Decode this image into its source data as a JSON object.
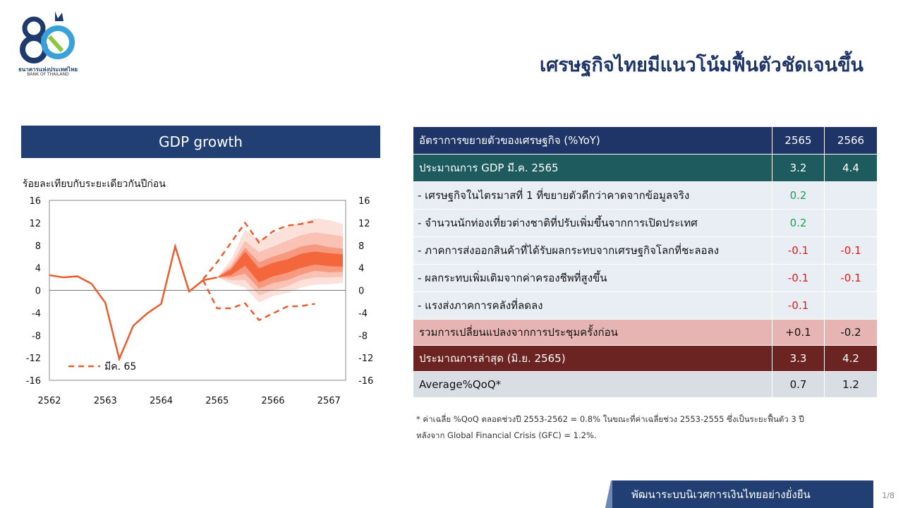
{
  "header": {
    "logo_text_th": "ธนาคารแห่งประเทศไทย",
    "logo_text_en": "BANK OF THAILAND",
    "title": "เศรษฐกิจไทยมีแนวโน้มฟื้นตัวชัดเจนขึ้น"
  },
  "chart_panel": {
    "title": "GDP growth",
    "unit_label": "ร้อยละเทียบกับระยะเดียวกันปีก่อน"
  },
  "chart_data": {
    "type": "line",
    "x_ticks": [
      "2562",
      "2563",
      "2564",
      "2565",
      "2566",
      "2567"
    ],
    "y_ticks": [
      16,
      12,
      8,
      4,
      0,
      -4,
      -8,
      -12,
      -16
    ],
    "ylim": [
      -16,
      16
    ],
    "legend": {
      "label": "มีค. 65",
      "position": "bottom-left"
    },
    "actual": {
      "x": [
        2562.0,
        2562.25,
        2562.5,
        2562.75,
        2563.0,
        2563.25,
        2563.5,
        2563.75,
        2564.0,
        2564.25,
        2564.5,
        2564.75,
        2565.0
      ],
      "y": [
        2.7,
        2.3,
        2.5,
        1.2,
        -2.2,
        -12.2,
        -6.3,
        -4.1,
        -2.4,
        7.8,
        -0.2,
        1.8,
        2.3
      ]
    },
    "mar65_upper": {
      "x": [
        2564.75,
        2565.0,
        2565.25,
        2565.5,
        2565.75,
        2566.0,
        2566.25,
        2566.5,
        2566.75
      ],
      "y": [
        2.0,
        5.0,
        8.5,
        12.0,
        8.5,
        10.5,
        11.5,
        11.8,
        12.3
      ]
    },
    "mar65_lower": {
      "x": [
        2564.75,
        2565.0,
        2565.25,
        2565.5,
        2565.75,
        2566.0,
        2566.25,
        2566.5,
        2566.75
      ],
      "y": [
        1.8,
        -3.2,
        -3.2,
        -2.3,
        -5.3,
        -4.1,
        -2.9,
        -2.8,
        -2.4
      ]
    },
    "fan": {
      "x": [
        2565.0,
        2565.25,
        2565.5,
        2565.75,
        2566.0,
        2566.25,
        2566.5,
        2566.75,
        2567.0,
        2567.25
      ],
      "median": [
        2.3,
        3.2,
        5.8,
        2.5,
        3.6,
        4.2,
        5.2,
        5.8,
        5.4,
        5.3
      ],
      "bands": [
        {
          "lower": [
            2.3,
            1.2,
            0.5,
            -2.2,
            -1.0,
            -0.5,
            0.5,
            1.0,
            1.1,
            1.3
          ],
          "upper": [
            2.3,
            5.5,
            10.8,
            9.0,
            10.0,
            11.3,
            12.0,
            12.8,
            12.5,
            11.8
          ],
          "color": "#fbe1da"
        },
        {
          "lower": [
            2.3,
            1.8,
            1.8,
            -0.9,
            0.0,
            0.7,
            1.8,
            2.3,
            2.3,
            2.4
          ],
          "upper": [
            2.3,
            4.6,
            8.8,
            6.8,
            7.8,
            8.8,
            9.8,
            10.3,
            10.0,
            9.6
          ],
          "color": "#f9c2b4"
        },
        {
          "lower": [
            2.3,
            2.3,
            3.0,
            0.3,
            1.3,
            1.8,
            2.8,
            3.5,
            3.2,
            3.3
          ],
          "upper": [
            2.3,
            4.1,
            7.6,
            5.0,
            6.0,
            6.8,
            7.8,
            8.2,
            7.7,
            7.4
          ],
          "color": "#f7997f"
        },
        {
          "lower": [
            2.3,
            2.7,
            4.4,
            1.4,
            2.5,
            3.1,
            4.0,
            4.6,
            4.3,
            4.2
          ],
          "upper": [
            2.3,
            3.7,
            6.9,
            3.9,
            4.9,
            5.5,
            6.5,
            6.9,
            6.6,
            6.4
          ],
          "color": "#f4673d"
        }
      ]
    },
    "colors": {
      "actual": "#ec5b2b",
      "dashed": "#ec5b2b",
      "axis": "#888888"
    }
  },
  "table": {
    "header": {
      "label": "อัตราการขยายตัวของเศรษฐกิจ (%YoY)",
      "y1": "2565",
      "y2": "2566"
    },
    "gdp_row": {
      "label": "ประมาณการ GDP มี.ค. 2565",
      "y1": "3.2",
      "y2": "4.4"
    },
    "items": [
      {
        "label": "- เศรษฐกิจในไตรมาสที่ 1 ที่ขยายตัวดีกว่าคาดจากข้อมูลจริง",
        "y1": "0.2",
        "y2": ""
      },
      {
        "label": "- จำนวนนักท่องเที่ยวต่างชาติที่ปรับเพิ่มขึ้นจากการเปิดประเทศ",
        "y1": "0.2",
        "y2": ""
      },
      {
        "label": "- ภาคการส่งออกสินค้าที่ได้รับผลกระทบจากเศรษฐกิจโลกที่ชะลอลง",
        "y1": "-0.1",
        "y2": "-0.1"
      },
      {
        "label": "- ผลกระทบเพิ่มเติมจากค่าครองชีพที่สูงขึ้น",
        "y1": "-0.1",
        "y2": "-0.1"
      },
      {
        "label": "- แรงส่งภาคการคลังที่ลดลง",
        "y1": "-0.1",
        "y2": ""
      }
    ],
    "change_row": {
      "label": "รวมการเปลี่ยนแปลงจากการประชุมครั้งก่อน",
      "y1": "+0.1",
      "y2": "-0.2"
    },
    "latest_row": {
      "label": "ประมาณการล่าสุด (มิ.ย. 2565)",
      "y1": "3.3",
      "y2": "4.2"
    },
    "avg_row": {
      "label": "Average%QoQ*",
      "y1": "0.7",
      "y2": "1.2"
    }
  },
  "footnote": {
    "line1": "* ค่าเฉลี่ย %QoQ ตลอดช่วงปี 2553-2562 = 0.8% ในขณะที่ค่าเฉลี่ยช่วง 2553-2555 ซึ่งเป็นระยะฟื้นตัว 3 ปี",
    "line2": "หลังจาก Global Financial Crisis (GFC) = 1.2%."
  },
  "footer": {
    "slogan": "พัฒนาระบบนิเวศการเงินไทยอย่างยั่งยืน",
    "page": "1/8"
  }
}
